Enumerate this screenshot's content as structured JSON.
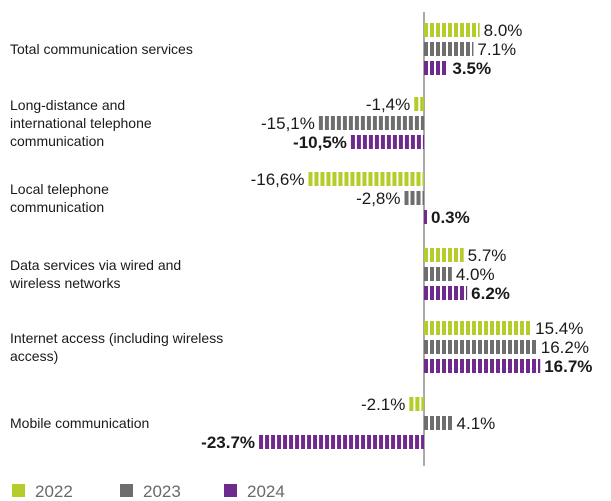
{
  "chart_data": {
    "type": "bar",
    "orientation": "horizontal",
    "categories": [
      [
        "Total communication services"
      ],
      [
        "Long-distance and",
        "international telephone",
        "communication"
      ],
      [
        "Local telephone",
        "communication"
      ],
      [
        "Data services via wired and",
        "wireless networks"
      ],
      [
        "Internet access (including wireless",
        "access)"
      ],
      [
        "Mobile communication"
      ]
    ],
    "series": [
      {
        "name": "2022",
        "color": "#b5cc2a",
        "values": [
          8.0,
          -1.4,
          -16.6,
          5.7,
          15.4,
          -2.1
        ],
        "labels": [
          "8.0%",
          "-1,4%",
          "-16,6%",
          "5.7%",
          "15.4%",
          "-2.1%"
        ]
      },
      {
        "name": "2023",
        "color": "#6e6e6e",
        "values": [
          7.1,
          -15.1,
          -2.8,
          4.0,
          16.2,
          4.1
        ],
        "labels": [
          "7.1%",
          "-15,1%",
          "-2,8%",
          "4.0%",
          "16.2%",
          "4.1%"
        ]
      },
      {
        "name": "2024",
        "color": "#6f2a8e",
        "values": [
          3.5,
          -10.5,
          0.3,
          6.2,
          16.7,
          -23.7
        ],
        "labels": [
          "3.5%",
          "-10,5%",
          "0.3%",
          "6.2%",
          "16.7%",
          "-23.7%"
        ]
      }
    ],
    "legend_position": "bottom-left",
    "grid": false
  }
}
